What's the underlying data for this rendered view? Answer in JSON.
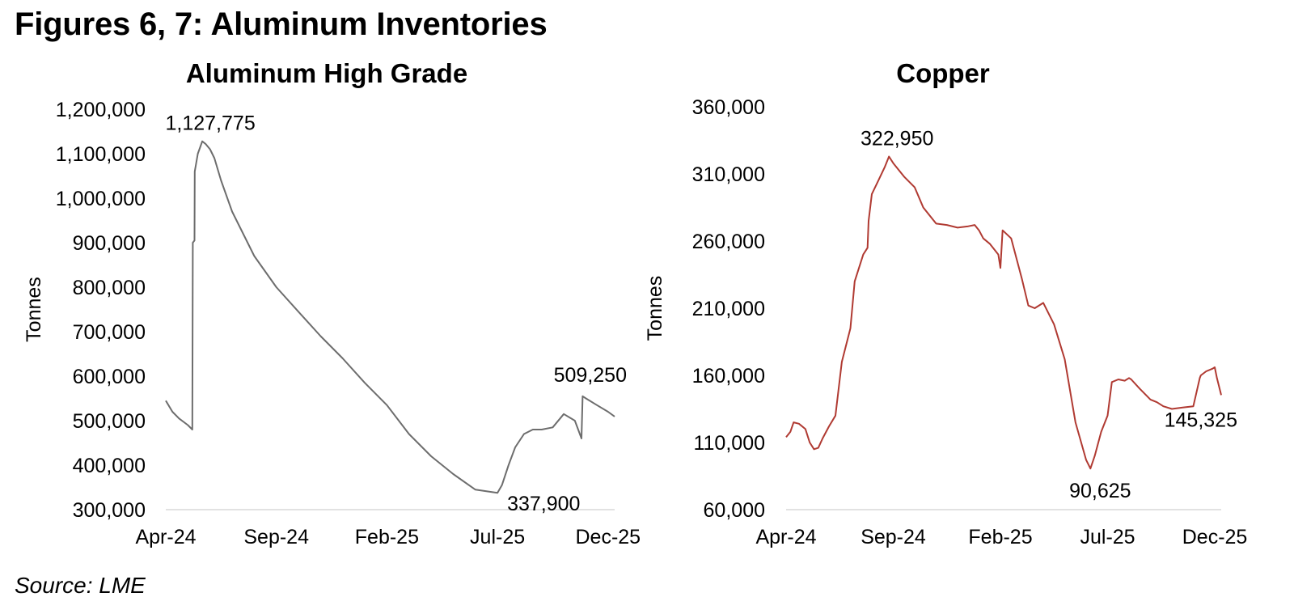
{
  "figure": {
    "title": "Figures 6, 7: Aluminum Inventories",
    "source": "Source: LME"
  },
  "chart_data": [
    {
      "type": "line",
      "title": "Aluminum High Grade",
      "ylabel": "Tonnes",
      "xlabel": "",
      "ylim": [
        300000,
        1200000
      ],
      "yticks": [
        300000,
        400000,
        500000,
        600000,
        700000,
        800000,
        900000,
        1000000,
        1100000,
        1200000
      ],
      "ytick_labels": [
        "300,000",
        "400,000",
        "500,000",
        "600,000",
        "700,000",
        "800,000",
        "900,000",
        "1,000,000",
        "1,100,000",
        "1,200,000"
      ],
      "xlim": [
        0,
        20.3
      ],
      "xticks": [
        0,
        5,
        10,
        15,
        20
      ],
      "xtick_labels": [
        "Apr-24",
        "Sep-24",
        "Feb-25",
        "Jul-25",
        "Dec-25"
      ],
      "color": "#6d6d6d",
      "series": [
        {
          "name": "Aluminum High Grade",
          "x": [
            0,
            0.3,
            0.6,
            1.0,
            1.2,
            1.22,
            1.3,
            1.31,
            1.45,
            1.65,
            1.8,
            2.0,
            2.2,
            2.5,
            3.0,
            3.5,
            4.0,
            5.0,
            6.0,
            7.0,
            8.0,
            9.0,
            10.0,
            11.0,
            12.0,
            13.0,
            14.0,
            15.0,
            15.2,
            15.5,
            15.8,
            16.2,
            16.6,
            17.0,
            17.5,
            18.0,
            18.5,
            18.8,
            18.85,
            19.0,
            19.5,
            20.0,
            20.3
          ],
          "y": [
            545000,
            520000,
            505000,
            490000,
            480000,
            900000,
            905000,
            1060000,
            1100000,
            1127775,
            1122000,
            1110000,
            1090000,
            1040000,
            970000,
            920000,
            870000,
            800000,
            745000,
            690000,
            640000,
            585000,
            535000,
            470000,
            420000,
            380000,
            345000,
            337900,
            355000,
            400000,
            440000,
            470000,
            480000,
            480000,
            485000,
            515000,
            500000,
            460000,
            555000,
            550000,
            535000,
            520000,
            509250
          ]
        }
      ],
      "annotations": [
        {
          "text": "1,127,775",
          "x": 1.65,
          "y": 1127775,
          "pos": "above"
        },
        {
          "text": "337,900",
          "x": 15.0,
          "y": 337900,
          "pos": "right-below"
        },
        {
          "text": "509,250",
          "x": 20.3,
          "y": 509250,
          "pos": "above-left"
        }
      ]
    },
    {
      "type": "line",
      "title": "Copper",
      "ylabel": "Tonnes",
      "xlabel": "",
      "ylim": [
        60000,
        360000
      ],
      "yticks": [
        60000,
        110000,
        160000,
        210000,
        260000,
        310000,
        360000
      ],
      "ytick_labels": [
        "60,000",
        "110,000",
        "160,000",
        "210,000",
        "260,000",
        "310,000",
        "360,000"
      ],
      "xlim": [
        0,
        20.3
      ],
      "xticks": [
        0,
        5,
        10,
        15,
        20
      ],
      "xtick_labels": [
        "Apr-24",
        "Sep-24",
        "Feb-25",
        "Jul-25",
        "Dec-25"
      ],
      "color": "#b03a32",
      "series": [
        {
          "name": "Copper",
          "x": [
            0,
            0.2,
            0.35,
            0.6,
            0.9,
            1.1,
            1.3,
            1.5,
            1.7,
            2.0,
            2.3,
            2.6,
            3.0,
            3.2,
            3.4,
            3.6,
            3.8,
            3.85,
            4.0,
            4.3,
            4.6,
            4.8,
            5.0,
            5.5,
            6.0,
            6.4,
            7.0,
            7.5,
            8.0,
            8.5,
            8.8,
            9.0,
            9.2,
            9.5,
            9.9,
            10.0,
            10.1,
            10.5,
            11.0,
            11.3,
            11.6,
            12.0,
            12.5,
            13.0,
            13.5,
            14.0,
            14.2,
            14.4,
            14.7,
            15.0,
            15.2,
            15.5,
            15.8,
            16.0,
            16.1,
            16.5,
            17.0,
            17.3,
            17.6,
            18.0,
            18.5,
            19.0,
            19.3,
            19.35,
            19.6,
            19.9,
            20.0,
            20.1,
            20.3
          ],
          "y": [
            114000,
            118000,
            125000,
            124000,
            120000,
            110000,
            105000,
            106000,
            113000,
            122000,
            130000,
            170000,
            195000,
            230000,
            240000,
            250000,
            255000,
            275000,
            295000,
            305000,
            315000,
            322950,
            318000,
            308000,
            300000,
            285000,
            273000,
            272000,
            270000,
            271000,
            272000,
            268000,
            262000,
            258000,
            250000,
            240000,
            268000,
            262000,
            232000,
            212000,
            210000,
            214000,
            198000,
            172000,
            125000,
            97000,
            90625,
            100000,
            118000,
            130000,
            155000,
            157000,
            156000,
            158000,
            157000,
            150000,
            142000,
            140000,
            137000,
            135000,
            136000,
            137000,
            158000,
            160000,
            163000,
            165000,
            166000,
            158000,
            145325
          ]
        }
      ],
      "annotations": [
        {
          "text": "322,950",
          "x": 4.8,
          "y": 322950,
          "pos": "above"
        },
        {
          "text": "90,625",
          "x": 14.2,
          "y": 90625,
          "pos": "below"
        },
        {
          "text": "145,325",
          "x": 20.3,
          "y": 145325,
          "pos": "below-left"
        }
      ]
    }
  ]
}
